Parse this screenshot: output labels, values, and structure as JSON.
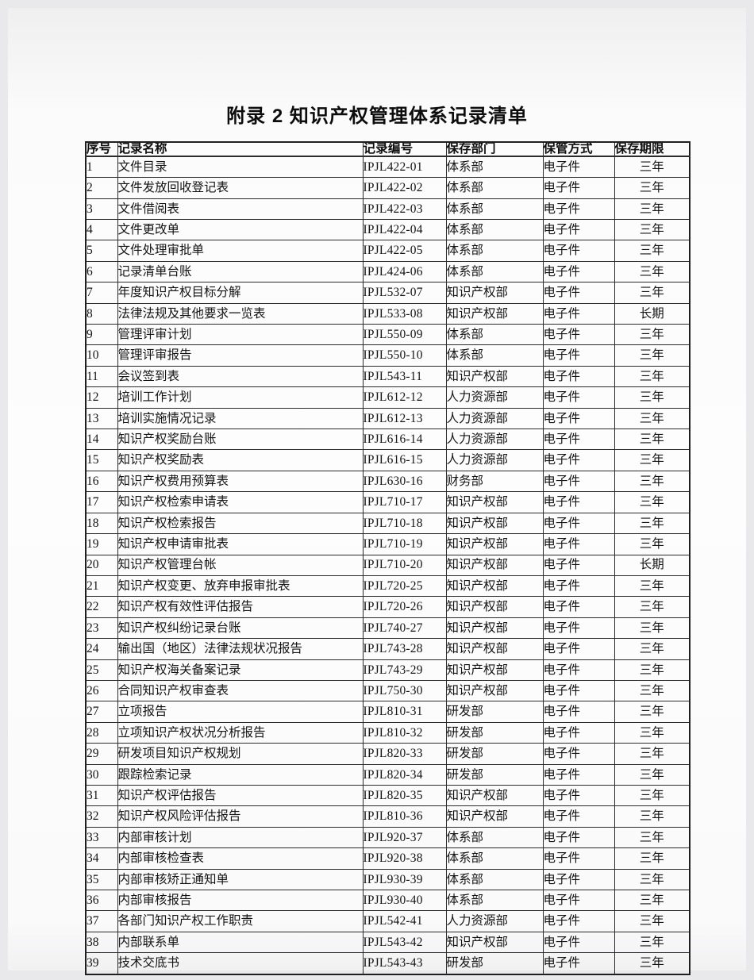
{
  "title": "附录 2 知识产权管理体系记录清单",
  "table": {
    "headers": [
      "序号",
      "记录名称",
      "记录编号",
      "保存部门",
      "保管方式",
      "保存期限"
    ],
    "rows": [
      [
        "1",
        "文件目录",
        "IPJL422-01",
        "体系部",
        "电子件",
        "三年"
      ],
      [
        "2",
        "文件发放回收登记表",
        "IPJL422-02",
        "体系部",
        "电子件",
        "三年"
      ],
      [
        "3",
        "文件借阅表",
        "IPJL422-03",
        "体系部",
        "电子件",
        "三年"
      ],
      [
        "4",
        "文件更改单",
        "IPJL422-04",
        "体系部",
        "电子件",
        "三年"
      ],
      [
        "5",
        "文件处理审批单",
        "IPJL422-05",
        "体系部",
        "电子件",
        "三年"
      ],
      [
        "6",
        "记录清单台账",
        "IPJL424-06",
        "体系部",
        "电子件",
        "三年"
      ],
      [
        "7",
        "年度知识产权目标分解",
        "IPJL532-07",
        "知识产权部",
        "电子件",
        "三年"
      ],
      [
        "8",
        "法律法规及其他要求一览表",
        "IPJL533-08",
        "知识产权部",
        "电子件",
        "长期"
      ],
      [
        "9",
        "管理评审计划",
        "IPJL550-09",
        "体系部",
        "电子件",
        "三年"
      ],
      [
        "10",
        "管理评审报告",
        "IPJL550-10",
        "体系部",
        "电子件",
        "三年"
      ],
      [
        "11",
        "会议签到表",
        "IPJL543-11",
        "知识产权部",
        "电子件",
        "三年"
      ],
      [
        "12",
        "培训工作计划",
        "IPJL612-12",
        "人力资源部",
        "电子件",
        "三年"
      ],
      [
        "13",
        "培训实施情况记录",
        "IPJL612-13",
        "人力资源部",
        "电子件",
        "三年"
      ],
      [
        "14",
        "知识产权奖励台账",
        "IPJL616-14",
        "人力资源部",
        "电子件",
        "三年"
      ],
      [
        "15",
        "知识产权奖励表",
        "IPJL616-15",
        "人力资源部",
        "电子件",
        "三年"
      ],
      [
        "16",
        "知识产权费用预算表",
        "IPJL630-16",
        "财务部",
        "电子件",
        "三年"
      ],
      [
        "17",
        "知识产权检索申请表",
        "IPJL710-17",
        "知识产权部",
        "电子件",
        "三年"
      ],
      [
        "18",
        "知识产权检索报告",
        "IPJL710-18",
        "知识产权部",
        "电子件",
        "三年"
      ],
      [
        "19",
        "知识产权申请审批表",
        "IPJL710-19",
        "知识产权部",
        "电子件",
        "三年"
      ],
      [
        "20",
        "知识产权管理台帐",
        "IPJL710-20",
        "知识产权部",
        "电子件",
        "长期"
      ],
      [
        "21",
        "知识产权变更、放弃申报审批表",
        "IPJL720-25",
        "知识产权部",
        "电子件",
        "三年"
      ],
      [
        "22",
        "知识产权有效性评估报告",
        "IPJL720-26",
        "知识产权部",
        "电子件",
        "三年"
      ],
      [
        "23",
        "知识产权纠纷记录台账",
        "IPJL740-27",
        "知识产权部",
        "电子件",
        "三年"
      ],
      [
        "24",
        "输出国（地区）法律法规状况报告",
        "IPJL743-28",
        "知识产权部",
        "电子件",
        "三年"
      ],
      [
        "25",
        "知识产权海关备案记录",
        "IPJL743-29",
        "知识产权部",
        "电子件",
        "三年"
      ],
      [
        "26",
        "合同知识产权审查表",
        "IPJL750-30",
        "知识产权部",
        "电子件",
        "三年"
      ],
      [
        "27",
        "立项报告",
        "IPJL810-31",
        "研发部",
        "电子件",
        "三年"
      ],
      [
        "28",
        "立项知识产权状况分析报告",
        "IPJL810-32",
        "研发部",
        "电子件",
        "三年"
      ],
      [
        "29",
        "研发项目知识产权规划",
        "IPJL820-33",
        "研发部",
        "电子件",
        "三年"
      ],
      [
        "30",
        "跟踪检索记录",
        "IPJL820-34",
        "研发部",
        "电子件",
        "三年"
      ],
      [
        "31",
        "知识产权评估报告",
        "IPJL820-35",
        "知识产权部",
        "电子件",
        "三年"
      ],
      [
        "32",
        "知识产权风险评估报告",
        "IPJL810-36",
        "知识产权部",
        "电子件",
        "三年"
      ],
      [
        "33",
        "内部审核计划",
        "IPJL920-37",
        "体系部",
        "电子件",
        "三年"
      ],
      [
        "34",
        "内部审核检查表",
        "IPJL920-38",
        "体系部",
        "电子件",
        "三年"
      ],
      [
        "35",
        "内部审核矫正通知单",
        "IPJL930-39",
        "体系部",
        "电子件",
        "三年"
      ],
      [
        "36",
        "内部审核报告",
        "IPJL930-40",
        "体系部",
        "电子件",
        "三年"
      ],
      [
        "37",
        "各部门知识产权工作职责",
        "IPJL542-41",
        "人力资源部",
        "电子件",
        "三年"
      ],
      [
        "38",
        "内部联系单",
        "IPJL543-42",
        "知识产权部",
        "电子件",
        "三年"
      ],
      [
        "39",
        "技术交底书",
        "IPJL543-43",
        "研发部",
        "电子件",
        "三年"
      ]
    ]
  },
  "colors": {
    "page_background": "#fdfdfd",
    "margin_background": "#e9e9eb",
    "border": "#2b2b2b",
    "text": "#141414"
  }
}
